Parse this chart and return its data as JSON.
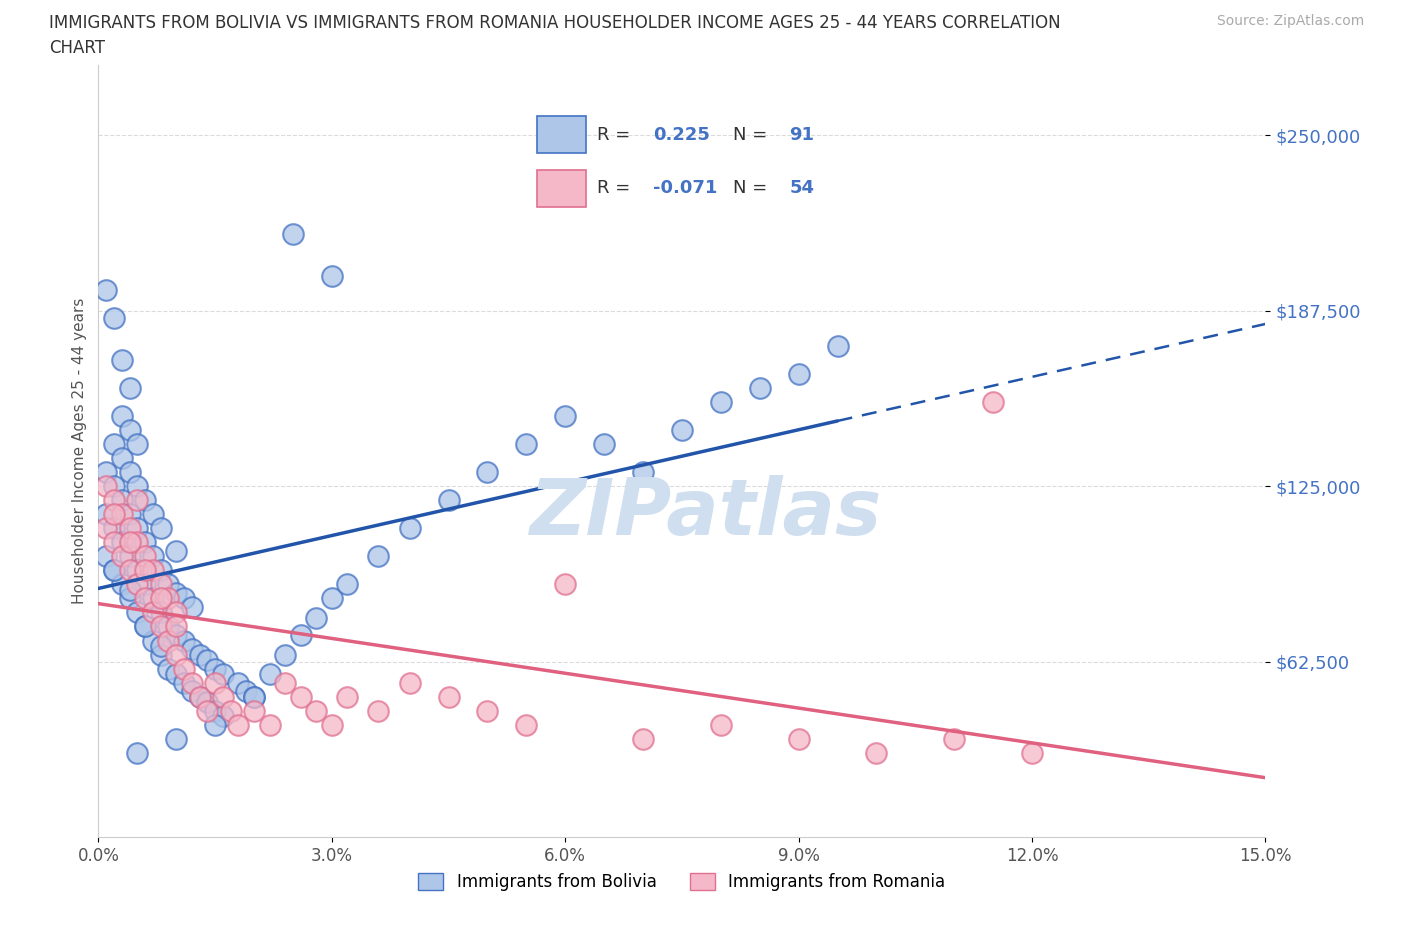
{
  "title_line1": "IMMIGRANTS FROM BOLIVIA VS IMMIGRANTS FROM ROMANIA HOUSEHOLDER INCOME AGES 25 - 44 YEARS CORRELATION",
  "title_line2": "CHART",
  "source_text": "Source: ZipAtlas.com",
  "ylabel": "Householder Income Ages 25 - 44 years",
  "xlim": [
    0.0,
    0.15
  ],
  "ylim": [
    0,
    275000
  ],
  "yticks": [
    62500,
    125000,
    187500,
    250000
  ],
  "ytick_labels": [
    "$62,500",
    "$125,000",
    "$187,500",
    "$250,000"
  ],
  "xticks": [
    0.0,
    0.03,
    0.06,
    0.09,
    0.12,
    0.15
  ],
  "xtick_labels": [
    "0.0%",
    "3.0%",
    "6.0%",
    "9.0%",
    "12.0%",
    "15.0%"
  ],
  "bolivia_color": "#aec6e8",
  "bolivia_edge_color": "#4472c4",
  "romania_color": "#f4b8c8",
  "romania_edge_color": "#e07090",
  "bolivia_R": 0.225,
  "bolivia_N": 91,
  "romania_R": -0.071,
  "romania_N": 54,
  "bolivia_line_color": "#2255aa",
  "romania_line_color": "#e06080",
  "dashed_line_color": "#aaaacc",
  "watermark_color": "#d0dff0",
  "legend_blue_color": "#4472c4",
  "bolivia_scatter_x": [
    0.001,
    0.001,
    0.001,
    0.002,
    0.002,
    0.002,
    0.002,
    0.003,
    0.003,
    0.003,
    0.003,
    0.003,
    0.004,
    0.004,
    0.004,
    0.004,
    0.004,
    0.004,
    0.005,
    0.005,
    0.005,
    0.005,
    0.005,
    0.006,
    0.006,
    0.006,
    0.006,
    0.007,
    0.007,
    0.007,
    0.007,
    0.008,
    0.008,
    0.008,
    0.008,
    0.009,
    0.009,
    0.009,
    0.01,
    0.01,
    0.01,
    0.01,
    0.011,
    0.011,
    0.011,
    0.012,
    0.012,
    0.012,
    0.013,
    0.013,
    0.014,
    0.014,
    0.015,
    0.015,
    0.016,
    0.016,
    0.018,
    0.019,
    0.02,
    0.022,
    0.024,
    0.026,
    0.028,
    0.03,
    0.032,
    0.036,
    0.04,
    0.045,
    0.05,
    0.055,
    0.06,
    0.065,
    0.07,
    0.075,
    0.08,
    0.085,
    0.09,
    0.095,
    0.03,
    0.025,
    0.02,
    0.015,
    0.01,
    0.005,
    0.003,
    0.002,
    0.001,
    0.008,
    0.006,
    0.004,
    0.002
  ],
  "bolivia_scatter_y": [
    100000,
    115000,
    130000,
    95000,
    110000,
    125000,
    140000,
    90000,
    105000,
    120000,
    135000,
    150000,
    85000,
    100000,
    115000,
    130000,
    145000,
    160000,
    80000,
    95000,
    110000,
    125000,
    140000,
    75000,
    90000,
    105000,
    120000,
    70000,
    85000,
    100000,
    115000,
    65000,
    80000,
    95000,
    110000,
    60000,
    75000,
    90000,
    58000,
    72000,
    87000,
    102000,
    55000,
    70000,
    85000,
    52000,
    67000,
    82000,
    50000,
    65000,
    48000,
    63000,
    45000,
    60000,
    43000,
    58000,
    55000,
    52000,
    50000,
    58000,
    65000,
    72000,
    78000,
    85000,
    90000,
    100000,
    110000,
    120000,
    130000,
    140000,
    150000,
    140000,
    130000,
    145000,
    155000,
    160000,
    165000,
    175000,
    200000,
    215000,
    50000,
    40000,
    35000,
    30000,
    170000,
    185000,
    195000,
    68000,
    75000,
    88000,
    95000
  ],
  "romania_scatter_x": [
    0.001,
    0.001,
    0.002,
    0.002,
    0.003,
    0.003,
    0.004,
    0.004,
    0.005,
    0.005,
    0.005,
    0.006,
    0.006,
    0.007,
    0.007,
    0.008,
    0.008,
    0.009,
    0.009,
    0.01,
    0.01,
    0.011,
    0.012,
    0.013,
    0.014,
    0.015,
    0.016,
    0.017,
    0.018,
    0.02,
    0.022,
    0.024,
    0.026,
    0.028,
    0.03,
    0.032,
    0.036,
    0.04,
    0.045,
    0.05,
    0.055,
    0.06,
    0.07,
    0.08,
    0.09,
    0.1,
    0.11,
    0.12,
    0.115,
    0.01,
    0.008,
    0.006,
    0.004,
    0.002
  ],
  "romania_scatter_y": [
    110000,
    125000,
    105000,
    120000,
    100000,
    115000,
    95000,
    110000,
    90000,
    105000,
    120000,
    85000,
    100000,
    80000,
    95000,
    75000,
    90000,
    70000,
    85000,
    65000,
    80000,
    60000,
    55000,
    50000,
    45000,
    55000,
    50000,
    45000,
    40000,
    45000,
    40000,
    55000,
    50000,
    45000,
    40000,
    50000,
    45000,
    55000,
    50000,
    45000,
    40000,
    90000,
    35000,
    40000,
    35000,
    30000,
    35000,
    30000,
    155000,
    75000,
    85000,
    95000,
    105000,
    115000
  ]
}
